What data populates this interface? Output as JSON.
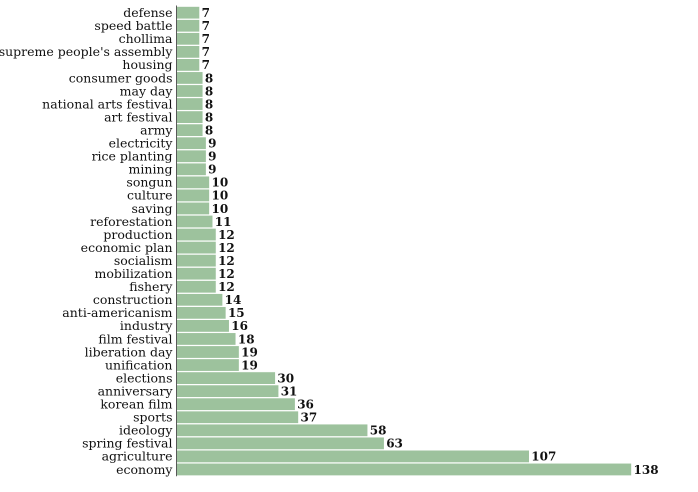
{
  "chart_data": {
    "type": "bar",
    "orientation": "horizontal",
    "title": "",
    "xlabel": "",
    "ylabel": "",
    "grid": false,
    "legend": "none",
    "bar_color": "#9dc29d",
    "xlim": [
      0,
      138
    ],
    "categories": [
      "defense",
      "speed battle",
      "chollima",
      "supreme people's assembly",
      "housing",
      "consumer goods",
      "may day",
      "national arts festival",
      "art festival",
      "army",
      "electricity",
      "rice planting",
      "mining",
      "songun",
      "culture",
      "saving",
      "reforestation",
      "production",
      "economic plan",
      "socialism",
      "mobilization",
      "fishery",
      "construction",
      "anti-americanism",
      "industry",
      "film festival",
      "liberation day",
      "unification",
      "elections",
      "anniversary",
      "korean film",
      "sports",
      "ideology",
      "spring festival",
      "agriculture",
      "economy"
    ],
    "values": [
      7,
      7,
      7,
      7,
      7,
      8,
      8,
      8,
      8,
      8,
      9,
      9,
      9,
      10,
      10,
      10,
      11,
      12,
      12,
      12,
      12,
      12,
      14,
      15,
      16,
      18,
      19,
      19,
      30,
      31,
      36,
      37,
      58,
      63,
      107,
      138
    ]
  }
}
